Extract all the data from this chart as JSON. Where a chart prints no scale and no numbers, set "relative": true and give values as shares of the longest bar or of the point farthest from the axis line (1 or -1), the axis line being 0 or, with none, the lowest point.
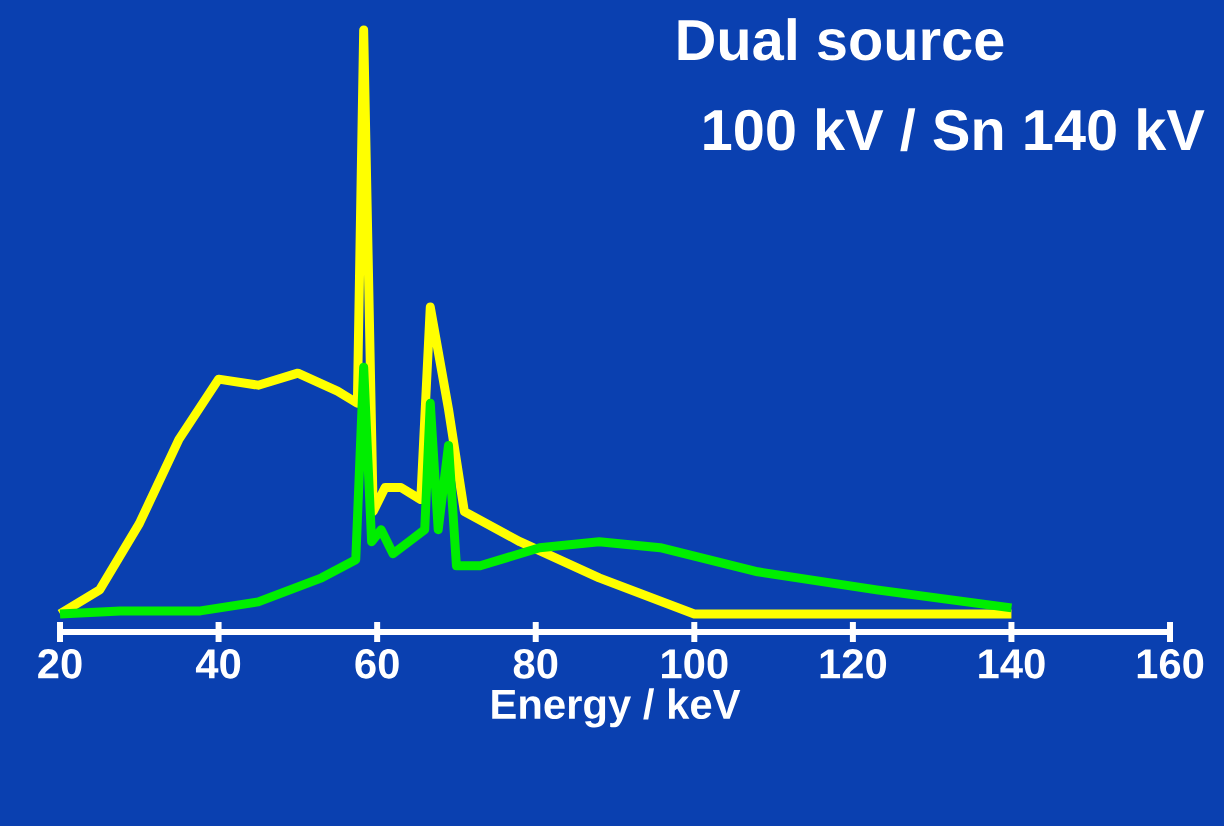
{
  "chart_data": {
    "type": "line",
    "title": "Dual source",
    "subtitle": "100 kV / Sn 140 kV",
    "xlabel": "Energy / keV",
    "relative": true,
    "xlim": [
      20,
      160
    ],
    "xticks": [
      20,
      40,
      60,
      80,
      100,
      120,
      140,
      160
    ],
    "series": [
      {
        "color": "#ffff00",
        "x": [
          20,
          25,
          30,
          35,
          40,
          45,
          50,
          55,
          57.5,
          58.3,
          59.5,
          61,
          63,
          65.5,
          66.7,
          69,
          71,
          78,
          88,
          100,
          140
        ],
        "values": [
          0.03,
          0.07,
          0.18,
          0.32,
          0.42,
          0.41,
          0.43,
          0.4,
          0.38,
          1.0,
          0.2,
          0.24,
          0.24,
          0.22,
          0.54,
          0.37,
          0.2,
          0.15,
          0.09,
          0.03,
          0.03
        ]
      },
      {
        "color": "#00ee00",
        "x": [
          20,
          27.6,
          37.7,
          45,
          53,
          57.3,
          58.3,
          59.3,
          60.5,
          62,
          64,
          66,
          66.7,
          67.7,
          69,
          70,
          73,
          80.5,
          88,
          95.7,
          108,
          123,
          140
        ],
        "values": [
          0.03,
          0.035,
          0.035,
          0.05,
          0.09,
          0.12,
          0.44,
          0.15,
          0.17,
          0.13,
          0.15,
          0.17,
          0.38,
          0.17,
          0.31,
          0.11,
          0.11,
          0.14,
          0.15,
          0.14,
          0.1,
          0.07,
          0.04
        ]
      }
    ]
  }
}
